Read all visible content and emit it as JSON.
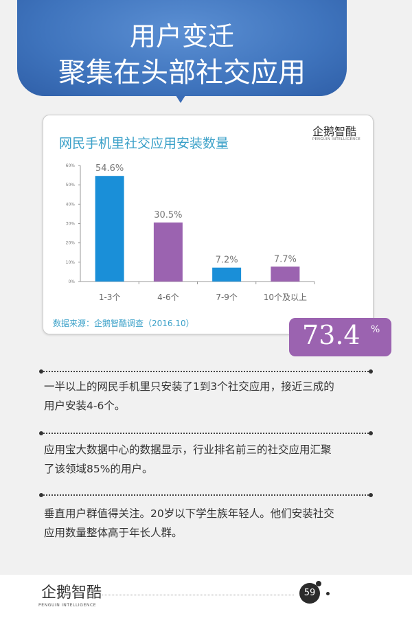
{
  "header": {
    "title_line1": "用户变迁",
    "title_line2": "聚集在头部社交应用"
  },
  "chart_data": {
    "type": "bar",
    "title": "网民手机里社交应用安装数量",
    "categories": [
      "1-3个",
      "4-6个",
      "7-9个",
      "10个及以上"
    ],
    "values": [
      54.6,
      30.5,
      7.2,
      7.7
    ],
    "data_labels": [
      "54.6%",
      "30.5%",
      "7.2%",
      "7.7%"
    ],
    "colors": [
      "#1a8fd8",
      "#9b63b0",
      "#1a8fd8",
      "#9b63b0"
    ],
    "ylim": [
      0,
      60
    ],
    "yticks": [
      "0%",
      "10%",
      "20%",
      "30%",
      "40%",
      "50%",
      "60%"
    ],
    "grid": false,
    "source": "数据来源：企鹅智酷调查（2016.10）"
  },
  "brand": {
    "logo": "企鹅智酷",
    "logo_sub": "PENGUIN INTELLIGENCE"
  },
  "highlight": {
    "value": "73.4",
    "unit": "%"
  },
  "paragraphs": [
    [
      "一半以上的网民手机里只安装了1到3个社交应用，接近三成的",
      "用户安装4-6个。"
    ],
    [
      "应用宝大数据中心的数据显示，行业排名前三的社交应用汇聚",
      "了该领域85%的用户。"
    ],
    [
      "垂直用户群值得关注。20岁以下学生族年轻人。他们安装社交",
      "应用数量整体高于年长人群。"
    ]
  ],
  "footer": {
    "page_number": "59"
  }
}
